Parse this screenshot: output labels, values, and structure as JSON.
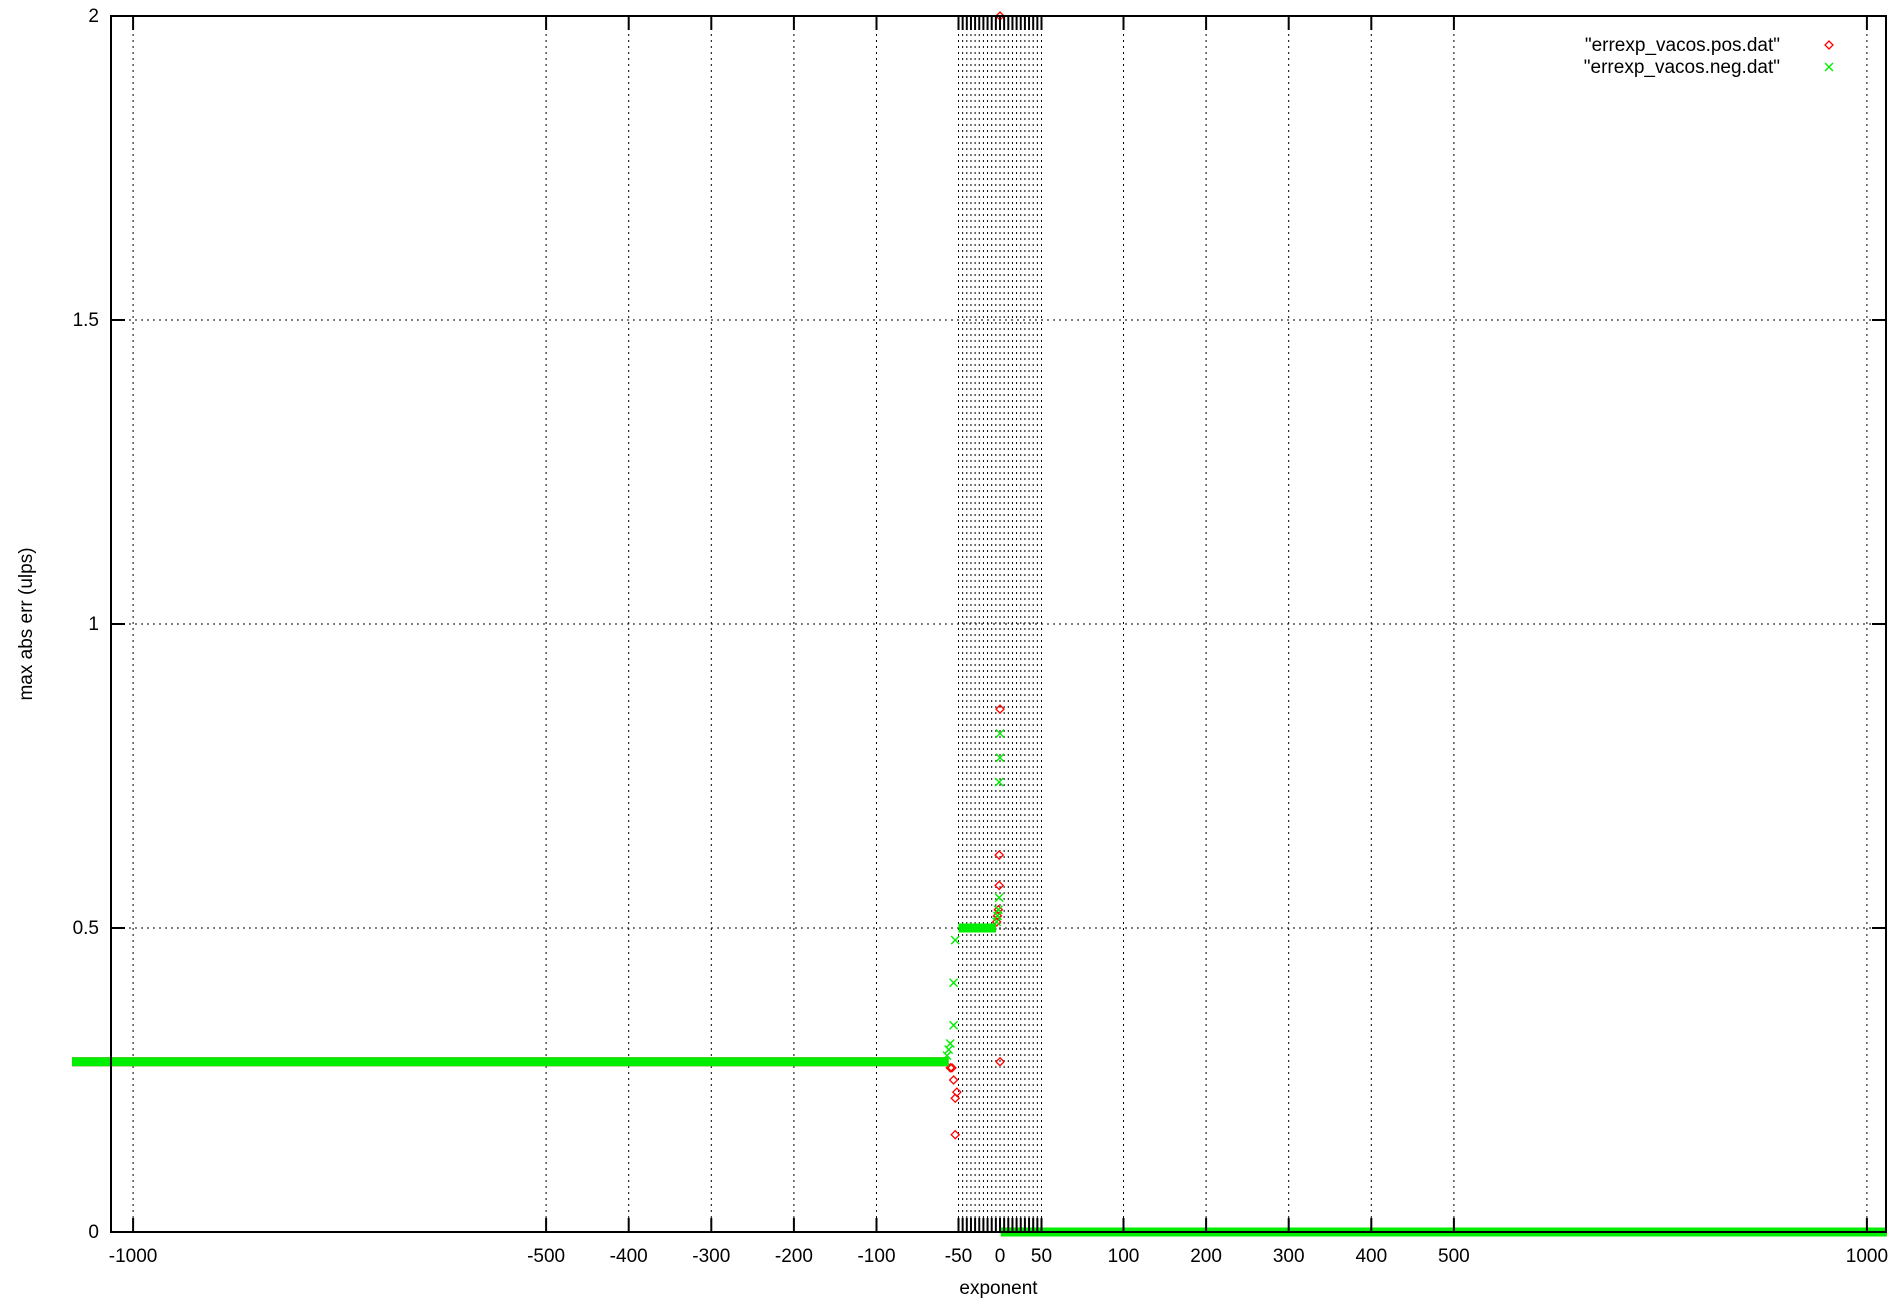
{
  "chart_data": {
    "type": "scatter",
    "title": "",
    "xlabel": "exponent",
    "ylabel": "max abs err (ulps)",
    "xlim": [
      -1075,
      1075
    ],
    "ylim": [
      0,
      2
    ],
    "x_ticks": [
      -1000,
      -500,
      -400,
      -300,
      -200,
      -100,
      -50,
      0,
      50,
      100,
      200,
      300,
      400,
      500,
      1000
    ],
    "x_minor_ticks": [
      -45,
      -40,
      -35,
      -30,
      -25,
      -20,
      -15,
      -10,
      -5,
      5,
      10,
      15,
      20,
      25,
      30,
      35,
      40,
      45
    ],
    "y_ticks": [
      0,
      0.5,
      1,
      1.5,
      2
    ],
    "y_tick_labels": [
      "0",
      "0.5",
      "1",
      "1.5",
      "2"
    ],
    "grid": true,
    "legend_position": "top-right",
    "series": [
      {
        "name": "\"errexp_vacos.pos.dat\"",
        "marker": "diamond",
        "color": "#ff0000",
        "runs": [
          {
            "x_from": -1074,
            "x_to": -56,
            "y": 0.28
          },
          {
            "x_from": -45,
            "x_to": -5,
            "y": 0.5
          },
          {
            "x_from": 1,
            "x_to": 1024,
            "y": 0
          }
        ],
        "points": [
          [
            -55,
            0.27
          ],
          [
            -54,
            0.27
          ],
          [
            -53,
            0.25
          ],
          [
            -52,
            0.22
          ],
          [
            -51,
            0.23
          ],
          [
            -52,
            0.16
          ],
          [
            -4,
            0.51
          ],
          [
            -3,
            0.52
          ],
          [
            -2,
            0.53
          ],
          [
            -1,
            0.57
          ],
          [
            -1,
            0.62
          ],
          [
            0,
            0.86
          ],
          [
            0,
            2
          ],
          [
            0,
            0.28
          ]
        ]
      },
      {
        "name": "\"errexp_vacos.neg.dat\"",
        "marker": "cross",
        "color": "#00ee00",
        "runs": [
          {
            "x_from": -1074,
            "x_to": -56,
            "y": 0.28
          },
          {
            "x_from": -50,
            "x_to": -5,
            "y": 0.5
          },
          {
            "x_from": 1,
            "x_to": 1024,
            "y": 0
          }
        ],
        "points": [
          [
            -57,
            0.29
          ],
          [
            -56,
            0.3
          ],
          [
            -55,
            0.31
          ],
          [
            -53,
            0.34
          ],
          [
            -53,
            0.41
          ],
          [
            -52,
            0.48
          ],
          [
            -4,
            0.51
          ],
          [
            -3,
            0.52
          ],
          [
            -2,
            0.53
          ],
          [
            -1,
            0.55
          ],
          [
            -1,
            0.74
          ],
          [
            0,
            0.78
          ],
          [
            0,
            0.82
          ]
        ]
      }
    ]
  }
}
